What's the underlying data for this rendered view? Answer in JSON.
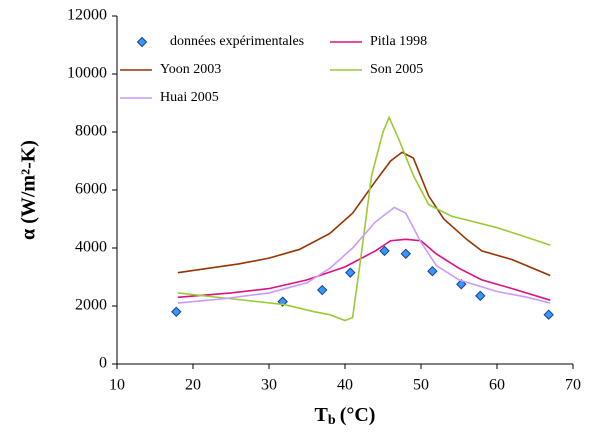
{
  "chart_data": {
    "type": "line",
    "xlabel": {
      "main": "T",
      "sub": "b",
      "unit": "(°C)"
    },
    "ylabel": "α (W/m²-K)",
    "xlim": [
      10,
      70
    ],
    "xticks": [
      10,
      20,
      30,
      40,
      50,
      60,
      70
    ],
    "ylim": [
      0,
      12000
    ],
    "yticks": [
      0,
      2000,
      4000,
      6000,
      8000,
      10000,
      12000
    ],
    "series": [
      {
        "name": "données expérimentales",
        "color": "#3399ff",
        "marker": "diamond",
        "x": [
          17.8,
          31.8,
          37,
          40.7,
          45.2,
          48,
          51.5,
          55.3,
          57.8,
          66.8
        ],
        "values": [
          1800,
          2150,
          2550,
          3150,
          3900,
          3800,
          3200,
          2750,
          2350,
          1700
        ]
      },
      {
        "name": "Pitla 1998",
        "color": "#e0107f",
        "x": [
          18,
          25,
          30,
          35,
          40,
          44,
          46,
          48,
          50,
          52,
          55,
          58,
          62,
          67
        ],
        "values": [
          2300,
          2450,
          2600,
          2900,
          3350,
          3900,
          4250,
          4300,
          4250,
          3800,
          3300,
          2900,
          2600,
          2200
        ]
      },
      {
        "name": "Yoon 2003",
        "color": "#993300",
        "x": [
          18,
          22,
          26,
          30,
          34,
          38,
          41,
          44,
          46,
          47.5,
          49,
          51,
          53,
          56,
          58,
          62,
          67
        ],
        "values": [
          3150,
          3300,
          3450,
          3650,
          3950,
          4500,
          5200,
          6300,
          7000,
          7300,
          7100,
          5800,
          5000,
          4300,
          3900,
          3600,
          3050
        ]
      },
      {
        "name": "Son 2005",
        "color": "#99cc33",
        "x": [
          18,
          25,
          32,
          36,
          38,
          40,
          41,
          42,
          43.5,
          45,
          45.8,
          47,
          49,
          51,
          54,
          57,
          60,
          63,
          67
        ],
        "values": [
          2450,
          2250,
          2050,
          1800,
          1700,
          1500,
          1600,
          3500,
          6500,
          8000,
          8500,
          7800,
          6500,
          5500,
          5100,
          4900,
          4700,
          4450,
          4100
        ]
      },
      {
        "name": "Huai 2005",
        "color": "#cc99ff",
        "x": [
          18,
          24,
          30,
          35,
          38,
          41,
          44,
          46.5,
          48,
          50,
          52,
          55,
          60,
          64,
          67
        ],
        "values": [
          2100,
          2250,
          2450,
          2800,
          3300,
          4000,
          4900,
          5400,
          5200,
          4200,
          3400,
          2900,
          2500,
          2300,
          2100
        ]
      }
    ]
  }
}
